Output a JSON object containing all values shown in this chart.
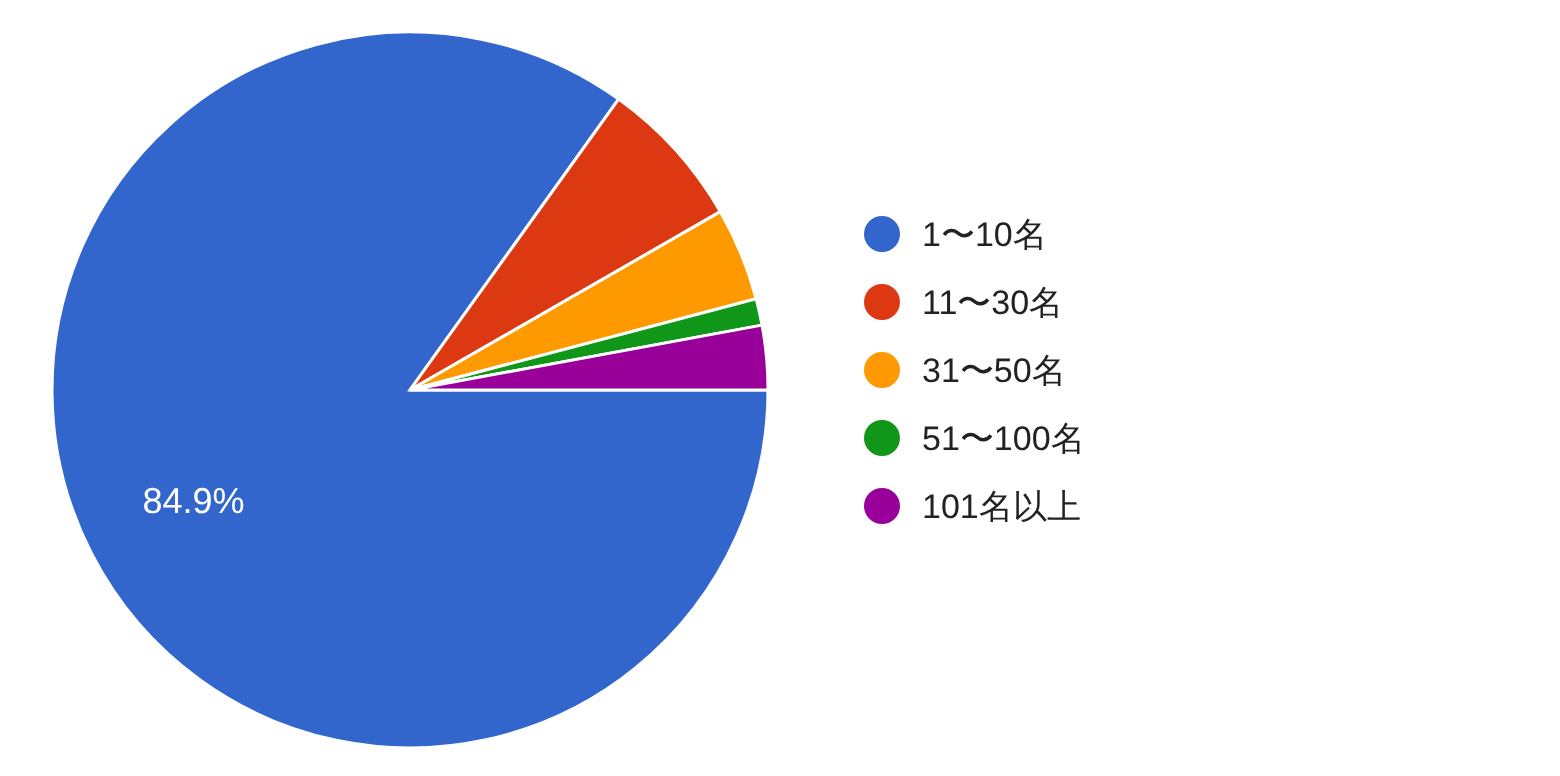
{
  "chart_data": {
    "type": "pie",
    "categories": [
      "1〜10名",
      "11〜30名",
      "31〜50名",
      "51〜100名",
      "101名以上"
    ],
    "values": [
      84.9,
      6.8,
      4.2,
      1.2,
      2.9
    ],
    "colors": [
      "#3366cc",
      "#dc3912",
      "#ff9900",
      "#109618",
      "#990099"
    ],
    "value_labels": [
      "84.9%",
      null,
      null,
      null,
      null
    ],
    "legend": "right"
  }
}
